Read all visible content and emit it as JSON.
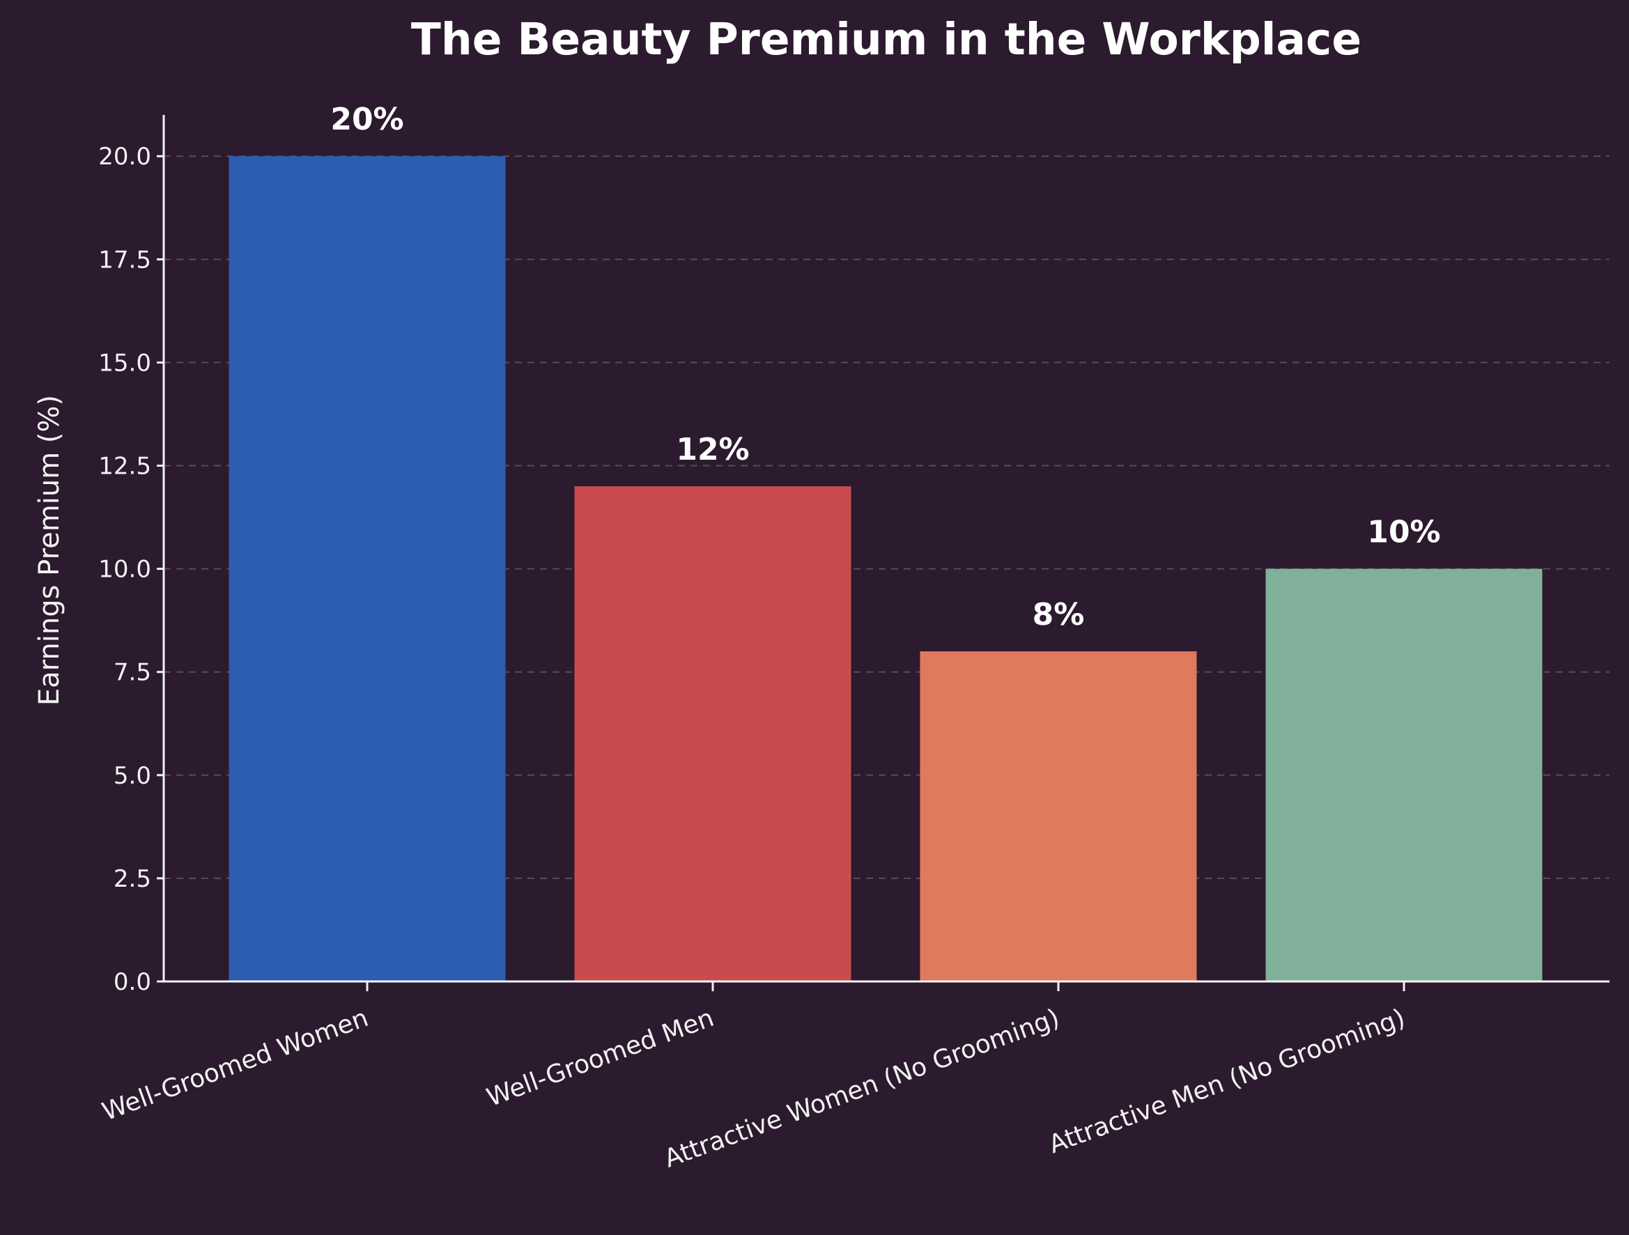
{
  "chart_data": {
    "type": "bar",
    "title": "The Beauty Premium in the Workplace",
    "xlabel": "",
    "ylabel": "Earnings Premium (%)",
    "categories": [
      "Well-Groomed Women",
      "Well-Groomed Men",
      "Attractive Women (No Grooming)",
      "Attractive Men (No Grooming)"
    ],
    "values": [
      20,
      12,
      8,
      10
    ],
    "value_labels": [
      "20%",
      "12%",
      "8%",
      "10%"
    ],
    "colors": [
      "#2c5db0",
      "#c84c4e",
      "#e07a5f",
      "#81b09a"
    ],
    "ylim": [
      0,
      21
    ],
    "yticks": [
      0.0,
      2.5,
      5.0,
      7.5,
      10.0,
      12.5,
      15.0,
      17.5,
      20.0
    ],
    "ytick_labels": [
      "0.0",
      "2.5",
      "5.0",
      "7.5",
      "10.0",
      "12.5",
      "15.0",
      "17.5",
      "20.0"
    ],
    "grid": "horizontal dashed",
    "legend": "none",
    "background": "#2c1a2e",
    "text_color": "#ffffff"
  }
}
